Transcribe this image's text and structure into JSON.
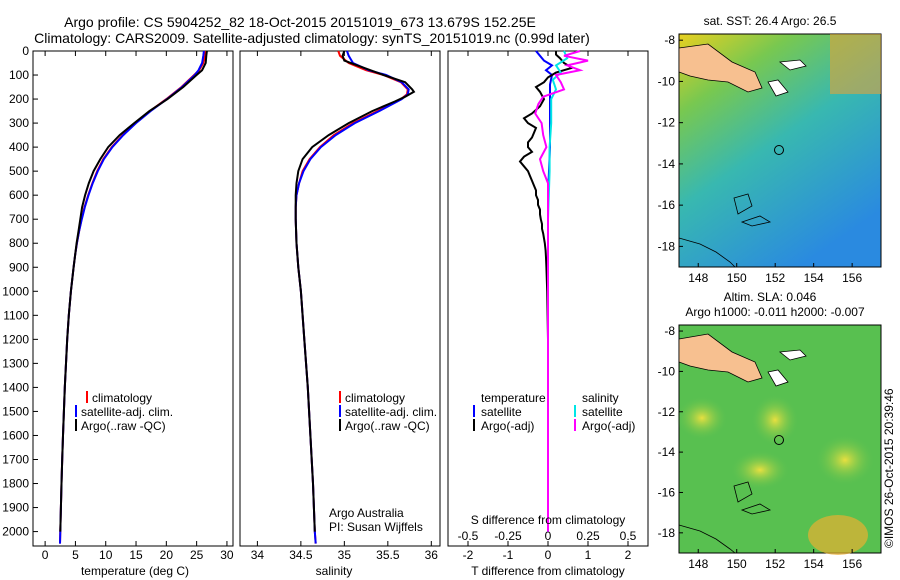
{
  "title": {
    "line1": "Argo profile: CS 5904252_82 18-Oct-2015 20151019_673 13.679S 152.25E",
    "line2": "Climatology: CARS2009. Satellite-adjusted climatology: synTS_20151019.nc (0.99d later)"
  },
  "colors": {
    "climatology": "#ff0000",
    "satellite": "#0000ff",
    "argo": "#000000",
    "sal_satellite": "#00e6e6",
    "sal_argo": "#ff00ff"
  },
  "chart_data": [
    {
      "type": "line",
      "name": "temperature-profile",
      "xlabel": "temperature (deg C)",
      "xlim": [
        -2,
        31
      ],
      "ylim": [
        2060,
        0
      ],
      "xticks": [
        0,
        5,
        10,
        15,
        20,
        25,
        30
      ],
      "yticks": [
        0,
        100,
        200,
        300,
        400,
        500,
        600,
        700,
        800,
        900,
        1000,
        1100,
        1200,
        1300,
        1400,
        1500,
        1600,
        1700,
        1800,
        1900,
        2000
      ],
      "legend": [
        "climatology",
        "satellite-adj. clim.",
        "Argo(..raw -QC)"
      ],
      "series": [
        {
          "name": "climatology",
          "color": "#ff0000",
          "depth": [
            0,
            20,
            50,
            80,
            100,
            150,
            200,
            250,
            300,
            350,
            400,
            450,
            500,
            550,
            600,
            650,
            700,
            750,
            800,
            850,
            900,
            1000,
            1100,
            1200,
            1300,
            1400,
            1500,
            1600,
            1700,
            1800,
            1900,
            2000,
            2050
          ],
          "values": [
            26.5,
            26.4,
            26.1,
            25.4,
            24.6,
            22.5,
            20.0,
            17.3,
            14.9,
            12.8,
            11.0,
            9.6,
            8.6,
            7.8,
            7.1,
            6.5,
            6.0,
            5.6,
            5.25,
            4.95,
            4.7,
            4.25,
            3.9,
            3.65,
            3.45,
            3.25,
            3.1,
            2.95,
            2.82,
            2.7,
            2.6,
            2.5,
            2.45
          ]
        },
        {
          "name": "satellite-adj. clim.",
          "color": "#0000ff",
          "depth": [
            0,
            20,
            50,
            80,
            100,
            150,
            200,
            250,
            300,
            350,
            400,
            450,
            500,
            550,
            600,
            650,
            700,
            750,
            800,
            850,
            900,
            1000,
            1100,
            1200,
            1300,
            1400,
            1500,
            1600,
            1700,
            1800,
            1900,
            2000,
            2050
          ],
          "values": [
            26.2,
            26.1,
            25.9,
            25.3,
            24.7,
            22.6,
            20.1,
            17.4,
            15.0,
            12.9,
            11.1,
            9.7,
            8.7,
            7.85,
            7.15,
            6.55,
            6.05,
            5.6,
            5.25,
            4.95,
            4.7,
            4.25,
            3.9,
            3.65,
            3.45,
            3.25,
            3.1,
            2.95,
            2.82,
            2.7,
            2.6,
            2.5,
            2.45
          ]
        },
        {
          "name": "Argo(..raw -QC)",
          "color": "#000000",
          "depth": [
            0,
            20,
            50,
            80,
            100,
            150,
            200,
            250,
            300,
            350,
            400,
            450,
            500,
            550,
            600,
            650,
            700,
            750,
            800,
            850,
            900,
            1000,
            1100,
            1200,
            1300,
            1400,
            1500,
            1600,
            1700,
            1800,
            1900,
            2000
          ],
          "values": [
            26.7,
            26.6,
            26.5,
            25.9,
            25.0,
            22.8,
            20.2,
            17.2,
            14.7,
            12.3,
            10.4,
            9.1,
            8.0,
            7.2,
            6.6,
            6.1,
            5.8,
            5.5,
            5.2,
            4.95,
            4.7,
            4.25,
            3.9,
            3.65,
            3.45,
            3.25,
            3.1,
            2.95,
            2.82,
            2.7,
            2.6,
            2.5
          ]
        }
      ]
    },
    {
      "type": "line",
      "name": "salinity-profile",
      "xlabel": "salinity",
      "xlim": [
        33.8,
        36.1
      ],
      "ylim": [
        2060,
        0
      ],
      "xticks": [
        34,
        34.5,
        35,
        35.5,
        36
      ],
      "legend": [
        "climatology",
        "satellite-adj. clim.",
        "Argo(..raw -QC)"
      ],
      "annotation": [
        "Argo Australia",
        "PI: Susan Wijffels"
      ],
      "series": [
        {
          "name": "climatology",
          "color": "#ff0000",
          "depth": [
            0,
            20,
            50,
            80,
            100,
            130,
            160,
            180,
            200,
            250,
            300,
            350,
            400,
            450,
            500,
            550,
            600,
            650,
            700,
            800,
            900,
            1000,
            1200,
            1400,
            1600,
            1800,
            2000,
            2050
          ],
          "values": [
            34.93,
            34.95,
            35.05,
            35.25,
            35.45,
            35.65,
            35.73,
            35.72,
            35.65,
            35.38,
            35.1,
            34.88,
            34.72,
            34.6,
            34.52,
            34.48,
            34.45,
            34.44,
            34.44,
            34.45,
            34.47,
            34.5,
            34.54,
            34.58,
            34.61,
            34.64,
            34.66,
            34.67
          ]
        },
        {
          "name": "satellite-adj. clim.",
          "color": "#0000ff",
          "depth": [
            0,
            20,
            50,
            80,
            100,
            130,
            160,
            180,
            200,
            250,
            300,
            350,
            400,
            450,
            500,
            550,
            600,
            650,
            700,
            800,
            900,
            1000,
            1200,
            1400,
            1600,
            1800,
            2000,
            2050
          ],
          "values": [
            35.03,
            35.05,
            35.1,
            35.28,
            35.48,
            35.66,
            35.74,
            35.73,
            35.66,
            35.4,
            35.12,
            34.9,
            34.73,
            34.61,
            34.53,
            34.48,
            34.45,
            34.44,
            34.44,
            34.45,
            34.47,
            34.5,
            34.54,
            34.58,
            34.61,
            34.64,
            34.66,
            34.67
          ]
        },
        {
          "name": "Argo(..raw -QC)",
          "color": "#000000",
          "depth": [
            0,
            20,
            40,
            60,
            80,
            100,
            130,
            160,
            170,
            190,
            210,
            250,
            300,
            350,
            400,
            450,
            500,
            550,
            600,
            650,
            700,
            800,
            900,
            1000,
            1200,
            1400,
            1600,
            1800,
            2000
          ],
          "values": [
            35.0,
            34.98,
            35.0,
            35.15,
            35.3,
            35.45,
            35.7,
            35.78,
            35.8,
            35.7,
            35.58,
            35.32,
            35.05,
            34.82,
            34.63,
            34.52,
            34.47,
            34.45,
            34.44,
            34.44,
            34.44,
            34.45,
            34.47,
            34.5,
            34.54,
            34.58,
            34.61,
            34.64,
            34.66
          ]
        }
      ]
    },
    {
      "type": "line",
      "name": "difference-profile",
      "xlabel_top": "S difference from climatology",
      "xticks_top_labels": [
        "-0.5",
        "-0.25",
        "0",
        "0.25",
        "0.5"
      ],
      "xticks_top": [
        -0.5,
        -0.25,
        0,
        0.25,
        0.5
      ],
      "xlabel": "T difference from climatology",
      "xlim": [
        -2.5,
        2.5
      ],
      "ylim": [
        2060,
        0
      ],
      "xticks": [
        -2,
        -1,
        0,
        1,
        2
      ],
      "legend_temperature_title": "temperature",
      "legend_salinity_title": "salinity",
      "legend": [
        "satellite",
        "Argo(-adj)",
        "satellite",
        "Argo(-adj)"
      ],
      "series": [
        {
          "name": "T satellite",
          "color": "#0000ff",
          "axis": "T",
          "depth": [
            0,
            20,
            40,
            60,
            80,
            100,
            140,
            200,
            300,
            400,
            600,
            1000,
            2000
          ],
          "values": [
            -0.3,
            -0.2,
            -0.1,
            0.1,
            -0.05,
            0.1,
            0.05,
            0.05,
            0.05,
            0.05,
            0.0,
            0.0,
            0.0
          ]
        },
        {
          "name": "T Argo(-adj)",
          "color": "#000000",
          "axis": "T",
          "depth": [
            0,
            15,
            30,
            50,
            70,
            90,
            110,
            130,
            150,
            170,
            200,
            230,
            260,
            280,
            300,
            320,
            340,
            360,
            380,
            400,
            420,
            440,
            460,
            480,
            500,
            520,
            540,
            560,
            580,
            600,
            620,
            640,
            660,
            680,
            700,
            720,
            740,
            760,
            780,
            800,
            830,
            860,
            900,
            950,
            1000,
            1100,
            1200,
            1400,
            1600,
            1800,
            2000
          ],
          "values": [
            0.2,
            0.2,
            0.3,
            0.4,
            0.6,
            0.2,
            0.0,
            -0.1,
            -0.3,
            -0.2,
            -0.1,
            -0.2,
            -0.4,
            -0.6,
            -0.5,
            -0.3,
            -0.35,
            -0.4,
            -0.5,
            -0.5,
            -0.4,
            -0.6,
            -0.7,
            -0.6,
            -0.5,
            -0.45,
            -0.4,
            -0.35,
            -0.3,
            -0.3,
            -0.25,
            -0.25,
            -0.2,
            -0.2,
            -0.18,
            -0.15,
            -0.15,
            -0.12,
            -0.1,
            -0.08,
            -0.06,
            -0.05,
            -0.04,
            -0.03,
            -0.02,
            -0.01,
            0.0,
            0.0,
            0.0,
            0.0,
            0.0
          ]
        },
        {
          "name": "S satellite",
          "color": "#00e6e6",
          "axis": "S",
          "depth": [
            0,
            30,
            60,
            90,
            120,
            160,
            200,
            250,
            300,
            400,
            500,
            700,
            1000,
            2000
          ],
          "values": [
            0.1,
            0.12,
            0.05,
            0.08,
            0.03,
            0.05,
            0.02,
            0.02,
            0.02,
            0.01,
            0.01,
            0.0,
            0.0,
            0.0
          ]
        },
        {
          "name": "S Argo(-adj)",
          "color": "#ff00ff",
          "axis": "S",
          "depth": [
            0,
            20,
            40,
            60,
            80,
            100,
            130,
            160,
            190,
            220,
            260,
            300,
            350,
            400,
            450,
            500,
            550,
            600,
            700,
            800,
            1000,
            2000
          ],
          "values": [
            0.2,
            0.1,
            0.25,
            0.12,
            0.2,
            0.05,
            0.08,
            0.1,
            -0.03,
            -0.06,
            -0.08,
            -0.04,
            -0.03,
            -0.01,
            -0.05,
            -0.03,
            0.0,
            0.0,
            0.0,
            0.0,
            0.0,
            0.0
          ]
        }
      ]
    },
    {
      "type": "heatmap",
      "name": "sst-map",
      "title": "sat. SST: 26.4  Argo: 26.5",
      "xlim": [
        147,
        157.5
      ],
      "ylim": [
        -19,
        -7.7
      ],
      "xticks": [
        148,
        150,
        152,
        154,
        156
      ],
      "yticks": [
        -8,
        -10,
        -12,
        -14,
        -16,
        -18
      ],
      "marker": [
        152.25,
        -13.68
      ]
    },
    {
      "type": "heatmap",
      "name": "sla-map",
      "title_lines": [
        "Altim. SLA: 0.046",
        "Argo h1000: -0.011 h2000: -0.007"
      ],
      "xlim": [
        147,
        157.5
      ],
      "ylim": [
        -19,
        -7.7
      ],
      "xticks": [
        148,
        150,
        152,
        154,
        156
      ],
      "yticks": [
        -8,
        -10,
        -12,
        -14,
        -16,
        -18
      ],
      "marker": [
        152.25,
        -13.68
      ]
    }
  ],
  "footer": {
    "stamp": "©IMOS 26-Oct-2015 20:39:46"
  }
}
